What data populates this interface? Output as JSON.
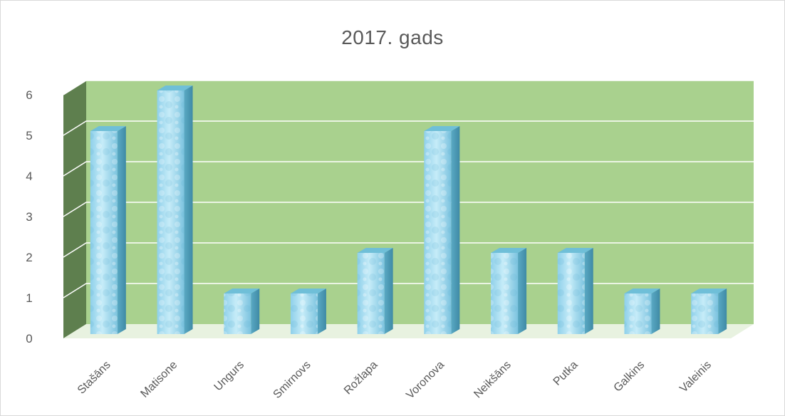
{
  "chart_data": {
    "type": "bar",
    "title": "2017. gads",
    "categories": [
      "Stašāns",
      "Matisone",
      "Ungurs",
      "Smirnovs",
      "Rožlapa",
      "Voronova",
      "Neikšāns",
      "Putka",
      "Galkins",
      "Valeinis"
    ],
    "values": [
      5,
      6,
      1,
      1,
      2,
      5,
      2,
      2,
      1,
      1
    ],
    "ylim": [
      0,
      6
    ],
    "yticks": [
      "0",
      "1",
      "2",
      "3",
      "4",
      "5",
      "6"
    ],
    "xlabel": "",
    "ylabel": "",
    "grid": true,
    "style": "3d-column",
    "colors": {
      "back_wall": "#a9d18e",
      "side_wall": "#5e7f4e",
      "gridline": "#ffffff",
      "bar_front": "#a8dcef",
      "bar_side": "#4f9fbb",
      "bar_top": "#6fbfd8",
      "text": "#595959"
    }
  }
}
